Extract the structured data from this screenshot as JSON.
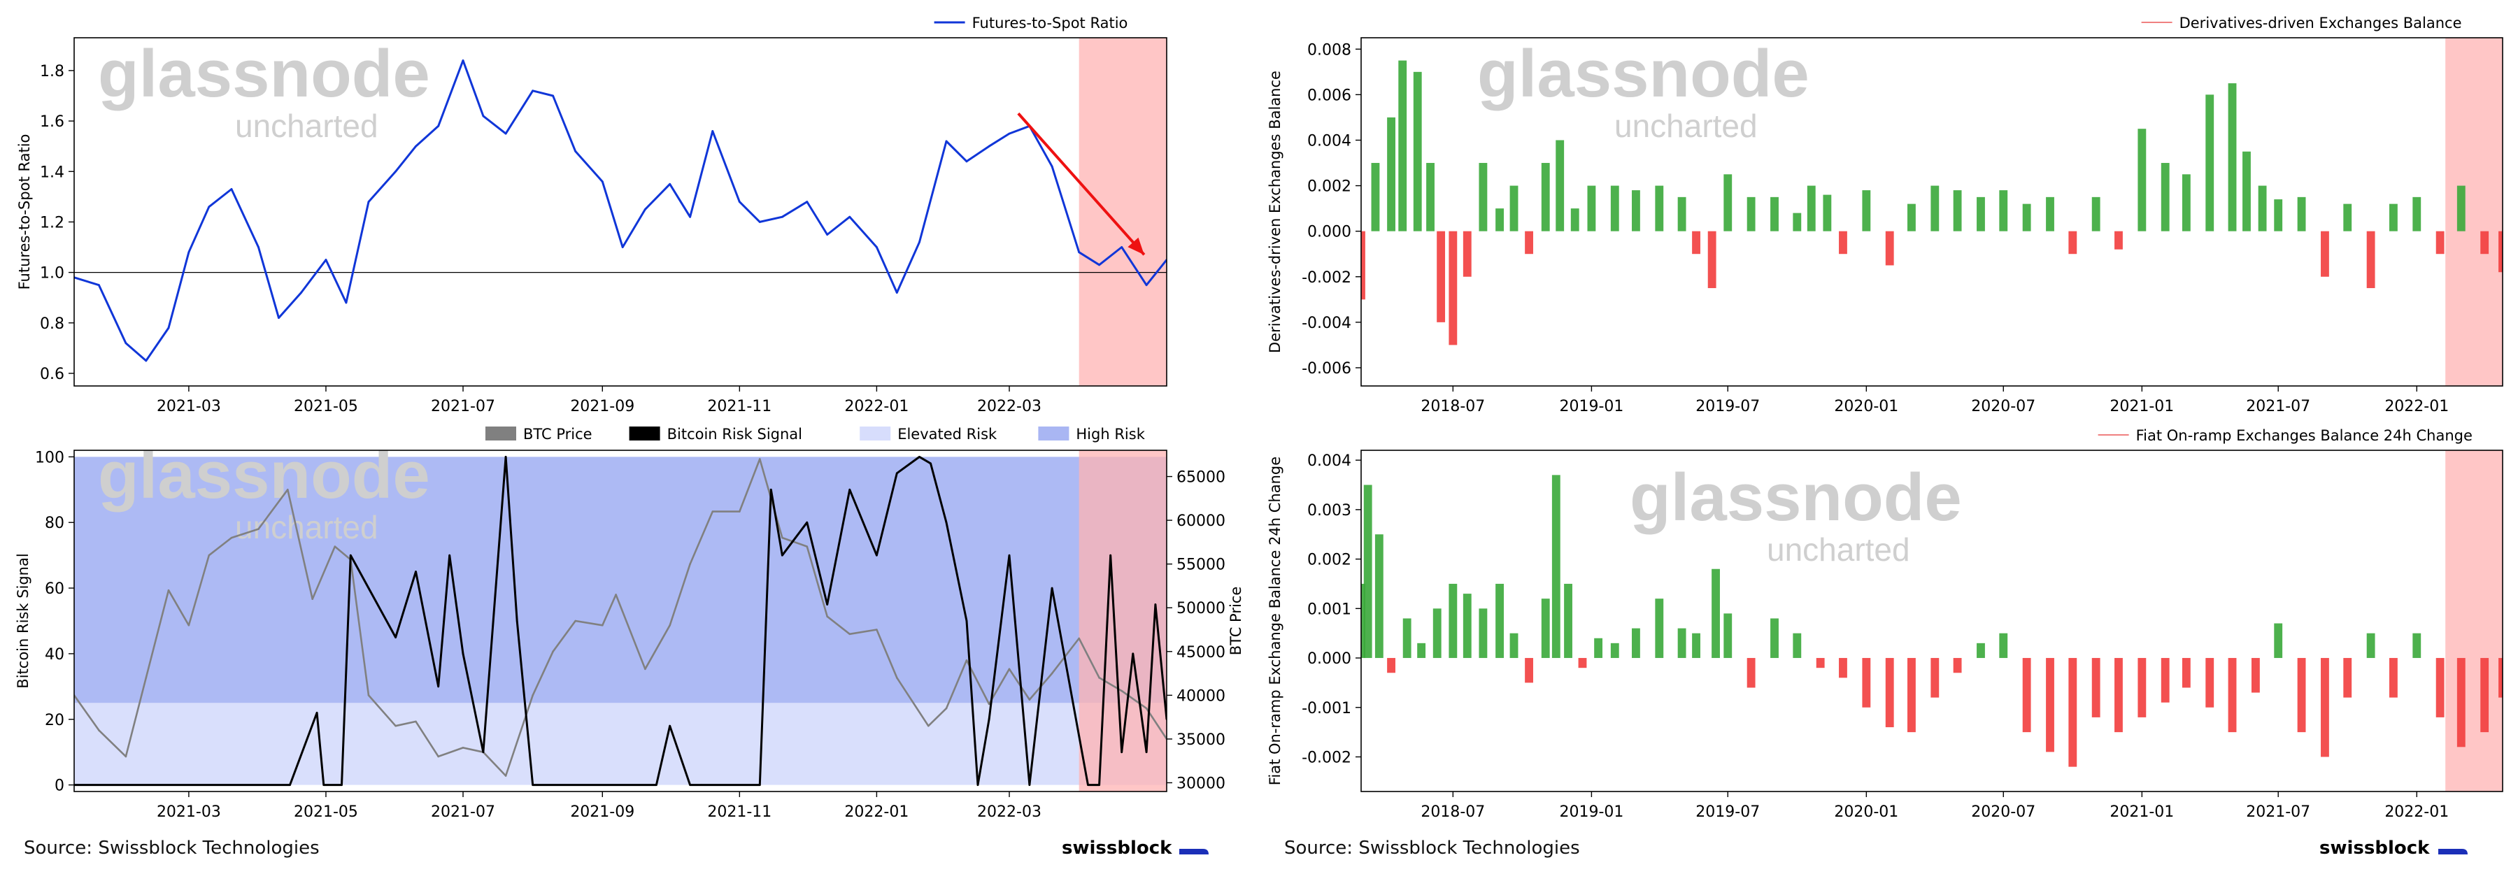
{
  "colors": {
    "futures_line": "#1036d8",
    "arrow": "#ee1111",
    "risk_shade": "#ffb3b3",
    "btc_price": "#808080",
    "risk_signal": "#000000",
    "elevated_risk": "#d7ddfc",
    "high_risk": "#a9b6f3",
    "bar_positive": "#3aa83a",
    "bar_negative": "#f23d3d",
    "watermark": "#cfcfcf"
  },
  "watermark": {
    "main": "glassnode",
    "sub": "uncharted"
  },
  "footer": {
    "left_source": "Source: Swissblock Technologies",
    "right_source": "Source: Swissblock Technologies",
    "left_brand": "swissblock",
    "right_brand": "swissblock"
  },
  "chart_data": [
    {
      "type": "line",
      "panel": "top-left",
      "legend": [
        "Futures-to-Spot Ratio"
      ],
      "legend_position": "top-right",
      "ylabel": "Futures-to-Spot Ratio",
      "xlabel": "",
      "x_range": [
        "2021-01-09",
        "2022-05-10"
      ],
      "ylim": [
        0.55,
        1.93
      ],
      "x_ticks": [
        "2021-03",
        "2021-05",
        "2021-07",
        "2021-09",
        "2021-11",
        "2022-01",
        "2022-03"
      ],
      "y_ticks": [
        0.6,
        0.8,
        1.0,
        1.2,
        1.4,
        1.6,
        1.8
      ],
      "hline": 1.0,
      "shaded_x": [
        "2022-04-01",
        "2022-05-10"
      ],
      "arrow": {
        "from": [
          "2022-03-05",
          1.63
        ],
        "to": [
          "2022-04-30",
          1.07
        ]
      },
      "series": [
        {
          "name": "Futures-to-Spot Ratio",
          "x": [
            "2021-01-09",
            "2021-01-20",
            "2021-02-01",
            "2021-02-10",
            "2021-02-20",
            "2021-03-01",
            "2021-03-10",
            "2021-03-20",
            "2021-04-01",
            "2021-04-10",
            "2021-04-20",
            "2021-05-01",
            "2021-05-10",
            "2021-05-20",
            "2021-06-01",
            "2021-06-10",
            "2021-06-20",
            "2021-07-01",
            "2021-07-10",
            "2021-07-20",
            "2021-08-01",
            "2021-08-10",
            "2021-08-20",
            "2021-09-01",
            "2021-09-10",
            "2021-09-20",
            "2021-10-01",
            "2021-10-10",
            "2021-10-20",
            "2021-11-01",
            "2021-11-10",
            "2021-11-20",
            "2021-12-01",
            "2021-12-10",
            "2021-12-20",
            "2022-01-01",
            "2022-01-10",
            "2022-01-20",
            "2022-02-01",
            "2022-02-10",
            "2022-02-20",
            "2022-03-01",
            "2022-03-10",
            "2022-03-20",
            "2022-04-01",
            "2022-04-10",
            "2022-04-20",
            "2022-05-01",
            "2022-05-10"
          ],
          "y": [
            0.98,
            0.95,
            0.72,
            0.65,
            0.78,
            1.08,
            1.26,
            1.33,
            1.1,
            0.82,
            0.92,
            1.05,
            0.88,
            1.28,
            1.4,
            1.5,
            1.58,
            1.84,
            1.62,
            1.55,
            1.72,
            1.7,
            1.48,
            1.36,
            1.1,
            1.25,
            1.35,
            1.22,
            1.56,
            1.28,
            1.2,
            1.22,
            1.28,
            1.15,
            1.22,
            1.1,
            0.92,
            1.12,
            1.52,
            1.44,
            1.5,
            1.55,
            1.58,
            1.42,
            1.08,
            1.03,
            1.1,
            0.95,
            1.05
          ]
        }
      ]
    },
    {
      "type": "line",
      "panel": "bottom-left",
      "legend": [
        "BTC Price",
        "Bitcoin Risk Signal",
        "Elevated Risk",
        "High Risk"
      ],
      "legend_position": "top-right",
      "ylabel": "Bitcoin Risk Signal",
      "y2label": "BTC Price",
      "x_range": [
        "2021-01-09",
        "2022-05-10"
      ],
      "ylim": [
        -2,
        102
      ],
      "y2lim": [
        29000,
        68000
      ],
      "x_ticks": [
        "2021-03",
        "2021-05",
        "2021-07",
        "2021-09",
        "2021-11",
        "2022-01",
        "2022-03"
      ],
      "y_ticks": [
        0,
        20,
        40,
        60,
        80,
        100
      ],
      "y2_ticks": [
        30000,
        35000,
        40000,
        45000,
        50000,
        55000,
        60000,
        65000
      ],
      "bands": [
        {
          "name": "Elevated Risk",
          "from": 0,
          "to": 25
        },
        {
          "name": "High Risk",
          "from": 25,
          "to": 100
        }
      ],
      "shaded_x": [
        "2022-04-01",
        "2022-05-10"
      ],
      "series": [
        {
          "name": "BTC Price",
          "axis": "right",
          "x": [
            "2021-01-09",
            "2021-01-20",
            "2021-02-01",
            "2021-02-10",
            "2021-02-20",
            "2021-03-01",
            "2021-03-10",
            "2021-03-20",
            "2021-04-01",
            "2021-04-14",
            "2021-04-25",
            "2021-05-05",
            "2021-05-12",
            "2021-05-20",
            "2021-06-01",
            "2021-06-10",
            "2021-06-20",
            "2021-07-01",
            "2021-07-10",
            "2021-07-20",
            "2021-08-01",
            "2021-08-10",
            "2021-08-20",
            "2021-09-01",
            "2021-09-07",
            "2021-09-20",
            "2021-10-01",
            "2021-10-10",
            "2021-10-20",
            "2021-11-01",
            "2021-11-10",
            "2021-11-20",
            "2021-12-01",
            "2021-12-10",
            "2021-12-20",
            "2022-01-01",
            "2022-01-10",
            "2022-01-24",
            "2022-02-01",
            "2022-02-10",
            "2022-02-20",
            "2022-03-01",
            "2022-03-10",
            "2022-03-20",
            "2022-04-01",
            "2022-04-10",
            "2022-04-20",
            "2022-05-01",
            "2022-05-10"
          ],
          "y": [
            40000,
            36000,
            33000,
            42000,
            52000,
            48000,
            56000,
            58000,
            59000,
            63500,
            51000,
            57000,
            55500,
            40000,
            36500,
            37000,
            33000,
            34000,
            33500,
            30800,
            40000,
            45000,
            48500,
            48000,
            51500,
            43000,
            48000,
            55000,
            61000,
            61000,
            67000,
            58000,
            57000,
            49000,
            47000,
            47500,
            42000,
            36500,
            38500,
            44000,
            39000,
            43000,
            39500,
            42500,
            46500,
            42000,
            40500,
            38500,
            35000
          ]
        },
        {
          "name": "Bitcoin Risk Signal",
          "axis": "left",
          "x": [
            "2021-01-09",
            "2021-04-15",
            "2021-04-27",
            "2021-04-30",
            "2021-05-02",
            "2021-05-08",
            "2021-05-12",
            "2021-05-20",
            "2021-06-01",
            "2021-06-10",
            "2021-06-20",
            "2021-06-25",
            "2021-07-01",
            "2021-07-10",
            "2021-07-20",
            "2021-07-25",
            "2021-08-01",
            "2021-09-25",
            "2021-10-01",
            "2021-10-10",
            "2021-10-15",
            "2021-11-10",
            "2021-11-15",
            "2021-11-20",
            "2021-12-01",
            "2021-12-10",
            "2021-12-20",
            "2022-01-01",
            "2022-01-10",
            "2022-01-20",
            "2022-01-25",
            "2022-02-01",
            "2022-02-10",
            "2022-02-15",
            "2022-02-20",
            "2022-03-01",
            "2022-03-10",
            "2022-03-20",
            "2022-04-05",
            "2022-04-10",
            "2022-04-15",
            "2022-04-20",
            "2022-04-25",
            "2022-05-01",
            "2022-05-05",
            "2022-05-10"
          ],
          "y": [
            0,
            0,
            22,
            0,
            0,
            0,
            70,
            60,
            45,
            65,
            30,
            70,
            40,
            10,
            100,
            50,
            0,
            0,
            18,
            0,
            0,
            0,
            90,
            70,
            80,
            55,
            90,
            70,
            95,
            100,
            98,
            80,
            50,
            0,
            20,
            70,
            0,
            60,
            0,
            0,
            70,
            10,
            40,
            10,
            55,
            20
          ]
        }
      ]
    },
    {
      "type": "bar",
      "panel": "top-right",
      "legend": [
        "Derivatives-driven Exchanges Balance"
      ],
      "legend_position": "top-right",
      "ylabel": "Derivatives-driven Exchanges Balance",
      "x_range": [
        "2018-03-01",
        "2022-04-25"
      ],
      "ylim": [
        -0.0068,
        0.0085
      ],
      "x_ticks": [
        "2018-07",
        "2019-01",
        "2019-07",
        "2020-01",
        "2020-07",
        "2021-01",
        "2021-07",
        "2022-01"
      ],
      "y_ticks": [
        -0.006,
        -0.004,
        -0.002,
        0.0,
        0.002,
        0.004,
        0.006,
        0.008
      ],
      "shaded_x": [
        "2022-02-08",
        "2022-04-25"
      ],
      "series": [
        {
          "name": "Derivatives-driven Exchanges Balance",
          "x": [
            "2018-03-01",
            "2018-03-20",
            "2018-04-10",
            "2018-04-25",
            "2018-05-15",
            "2018-06-01",
            "2018-06-15",
            "2018-07-01",
            "2018-07-20",
            "2018-08-10",
            "2018-09-01",
            "2018-09-20",
            "2018-10-10",
            "2018-11-01",
            "2018-11-20",
            "2018-12-10",
            "2019-01-01",
            "2019-02-01",
            "2019-03-01",
            "2019-04-01",
            "2019-05-01",
            "2019-05-20",
            "2019-06-10",
            "2019-07-01",
            "2019-08-01",
            "2019-09-01",
            "2019-10-01",
            "2019-10-20",
            "2019-11-10",
            "2019-12-01",
            "2020-01-01",
            "2020-02-01",
            "2020-03-01",
            "2020-04-01",
            "2020-05-01",
            "2020-06-01",
            "2020-07-01",
            "2020-08-01",
            "2020-09-01",
            "2020-10-01",
            "2020-11-01",
            "2020-12-01",
            "2021-01-01",
            "2021-02-01",
            "2021-03-01",
            "2021-04-01",
            "2021-05-01",
            "2021-05-20",
            "2021-06-10",
            "2021-07-01",
            "2021-08-01",
            "2021-09-01",
            "2021-10-01",
            "2021-11-01",
            "2021-12-01",
            "2022-01-01",
            "2022-02-01",
            "2022-03-01",
            "2022-04-01",
            "2022-04-25"
          ],
          "y": [
            -0.003,
            0.003,
            0.005,
            0.0075,
            0.007,
            0.003,
            -0.004,
            -0.005,
            -0.002,
            0.003,
            0.001,
            0.002,
            -0.001,
            0.003,
            0.004,
            0.001,
            0.002,
            0.002,
            0.0018,
            0.002,
            0.0015,
            -0.001,
            -0.0025,
            0.0025,
            0.0015,
            0.0015,
            0.0008,
            0.002,
            0.0016,
            -0.001,
            0.0018,
            -0.0015,
            0.0012,
            0.002,
            0.0018,
            0.0015,
            0.0018,
            0.0012,
            0.0015,
            -0.001,
            0.0015,
            -0.0008,
            0.0045,
            0.003,
            0.0025,
            0.006,
            0.0065,
            0.0035,
            0.002,
            0.0014,
            0.0015,
            -0.002,
            0.0012,
            -0.0025,
            0.0012,
            0.0015,
            -0.001,
            0.002,
            -0.001,
            -0.0018
          ]
        }
      ]
    },
    {
      "type": "bar",
      "panel": "bottom-right",
      "legend": [
        "Fiat On-ramp Exchanges Balance 24h Change"
      ],
      "legend_position": "top-right",
      "ylabel": "Fiat On-ramp Exchange Balance 24h Change",
      "x_range": [
        "2018-03-01",
        "2022-04-25"
      ],
      "ylim": [
        -0.0027,
        0.0042
      ],
      "x_ticks": [
        "2018-07",
        "2019-01",
        "2019-07",
        "2020-01",
        "2020-07",
        "2021-01",
        "2021-07",
        "2022-01"
      ],
      "y_ticks": [
        -0.002,
        -0.001,
        0.0,
        0.001,
        0.002,
        0.003,
        0.004
      ],
      "shaded_x": [
        "2022-02-08",
        "2022-04-25"
      ],
      "series": [
        {
          "name": "Fiat On-ramp Exchanges Balance 24h Change",
          "x": [
            "2018-03-01",
            "2018-03-10",
            "2018-03-25",
            "2018-04-10",
            "2018-05-01",
            "2018-05-20",
            "2018-06-10",
            "2018-07-01",
            "2018-07-20",
            "2018-08-10",
            "2018-09-01",
            "2018-09-20",
            "2018-10-10",
            "2018-11-01",
            "2018-11-15",
            "2018-12-01",
            "2018-12-20",
            "2019-01-10",
            "2019-02-01",
            "2019-03-01",
            "2019-04-01",
            "2019-05-01",
            "2019-05-20",
            "2019-06-15",
            "2019-07-01",
            "2019-08-01",
            "2019-09-01",
            "2019-10-01",
            "2019-11-01",
            "2019-12-01",
            "2020-01-01",
            "2020-02-01",
            "2020-03-01",
            "2020-04-01",
            "2020-05-01",
            "2020-06-01",
            "2020-07-01",
            "2020-08-01",
            "2020-09-01",
            "2020-10-01",
            "2020-11-01",
            "2020-12-01",
            "2021-01-01",
            "2021-02-01",
            "2021-03-01",
            "2021-04-01",
            "2021-05-01",
            "2021-06-01",
            "2021-07-01",
            "2021-08-01",
            "2021-09-01",
            "2021-10-01",
            "2021-11-01",
            "2021-12-01",
            "2022-01-01",
            "2022-02-01",
            "2022-03-01",
            "2022-04-01",
            "2022-04-25"
          ],
          "y": [
            0.0015,
            0.0035,
            0.0025,
            -0.0003,
            0.0008,
            0.0003,
            0.001,
            0.0015,
            0.0013,
            0.001,
            0.0015,
            0.0005,
            -0.0005,
            0.0012,
            0.0037,
            0.0015,
            -0.0002,
            0.0004,
            0.0003,
            0.0006,
            0.0012,
            0.0006,
            0.0005,
            0.0018,
            0.0009,
            -0.0006,
            0.0008,
            0.0005,
            -0.0002,
            -0.0004,
            -0.001,
            -0.0014,
            -0.0015,
            -0.0008,
            -0.0003,
            0.0003,
            0.0005,
            -0.0015,
            -0.0019,
            -0.0022,
            -0.0012,
            -0.0015,
            -0.0012,
            -0.0009,
            -0.0006,
            -0.001,
            -0.0015,
            -0.0007,
            0.0007,
            -0.0015,
            -0.002,
            -0.0008,
            0.0005,
            -0.0008,
            0.0005,
            -0.0012,
            -0.0018,
            -0.0015,
            -0.0008
          ]
        }
      ]
    }
  ]
}
